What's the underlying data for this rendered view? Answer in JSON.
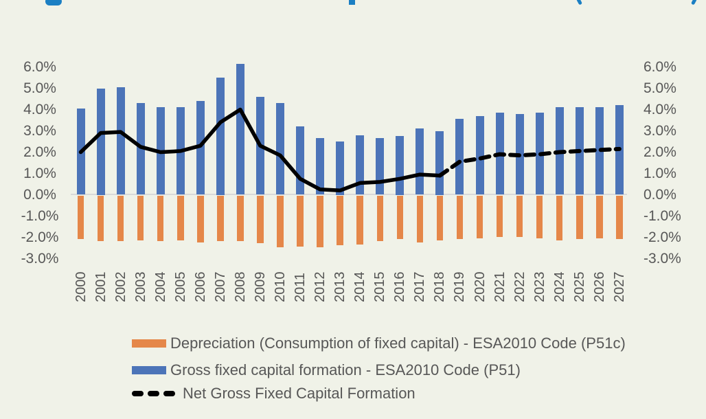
{
  "clipped_title": {
    "note": "title text cut off at top edge; only glyph descenders visible",
    "color": "#1b7fc3"
  },
  "colors": {
    "background": "#f0f2e8",
    "depreciation_bar": "#e58749",
    "gross_bar": "#4c74b8",
    "net_line": "#000000",
    "axis_text": "#575757",
    "zero_line": "#d9d9d9"
  },
  "chart_data": {
    "type": "bar",
    "subtype": "bar-with-line-overlay",
    "categories": [
      "2000",
      "2001",
      "2002",
      "2003",
      "2004",
      "2005",
      "2006",
      "2007",
      "2008",
      "2009",
      "2010",
      "2011",
      "2012",
      "2013",
      "2014",
      "2015",
      "2016",
      "2017",
      "2018",
      "2019",
      "2020",
      "2021",
      "2022",
      "2023",
      "2024",
      "2025",
      "2026",
      "2027"
    ],
    "series": [
      {
        "name": "Depreciation (Consumption of fixed capital) - ESA2010 Code (P51c)",
        "type": "bar",
        "color": "#e58749",
        "values": [
          -2.05,
          -2.15,
          -2.15,
          -2.1,
          -2.15,
          -2.1,
          -2.2,
          -2.15,
          -2.15,
          -2.25,
          -2.45,
          -2.4,
          -2.45,
          -2.35,
          -2.3,
          -2.15,
          -2.05,
          -2.2,
          -2.1,
          -2.05,
          -2.0,
          -1.95,
          -1.95,
          -2.0,
          -2.1,
          -2.05,
          -2.0,
          -2.05
        ]
      },
      {
        "name": "Gross fixed capital formation - ESA2010 Code (P51)",
        "type": "bar",
        "color": "#4c74b8",
        "values": [
          4.05,
          5.0,
          5.05,
          4.3,
          4.1,
          4.1,
          4.4,
          5.5,
          6.15,
          4.6,
          4.3,
          3.2,
          2.65,
          2.5,
          2.8,
          2.65,
          2.75,
          3.1,
          3.0,
          3.55,
          3.7,
          3.85,
          3.8,
          3.85,
          4.1,
          4.1,
          4.1,
          4.2
        ]
      },
      {
        "name": "Net Gross Fixed Capital Formation",
        "type": "line",
        "color": "#000000",
        "style": "solid then dashed (dashed = forecast from 2018 onward)",
        "solid_through_index": 18,
        "values": [
          2.0,
          2.9,
          2.95,
          2.25,
          2.0,
          2.05,
          2.3,
          3.4,
          4.0,
          2.3,
          1.85,
          0.75,
          0.25,
          0.2,
          0.55,
          0.6,
          0.75,
          0.95,
          0.9,
          1.55,
          1.7,
          1.9,
          1.85,
          1.9,
          2.0,
          2.05,
          2.1,
          2.15
        ]
      }
    ],
    "y_axis": {
      "tick_labels": [
        "6.0%",
        "5.0%",
        "4.0%",
        "3.0%",
        "2.0%",
        "1.0%",
        "0.0%",
        "-1.0%",
        "-2.0%",
        "-3.0%"
      ],
      "tick_values": [
        6,
        5,
        4,
        3,
        2,
        1,
        0,
        -1,
        -2,
        -3
      ],
      "range": [
        -3.0,
        6.5
      ],
      "format": "percent",
      "shown_on": "both sides"
    },
    "x_axis": {
      "label_rotation": "vertical (reads bottom-to-top)"
    },
    "grid": false,
    "legend_position": "bottom-left",
    "title": "",
    "xlabel": "",
    "ylabel": ""
  },
  "legend": {
    "items": [
      {
        "swatch": "orange-bar",
        "label": "Depreciation (Consumption of fixed capital) - ESA2010 Code (P51c)"
      },
      {
        "swatch": "blue-bar",
        "label": "Gross fixed capital formation - ESA2010 Code (P51)"
      },
      {
        "swatch": "black-dashed-line",
        "label": "Net Gross Fixed Capital Formation"
      }
    ]
  }
}
